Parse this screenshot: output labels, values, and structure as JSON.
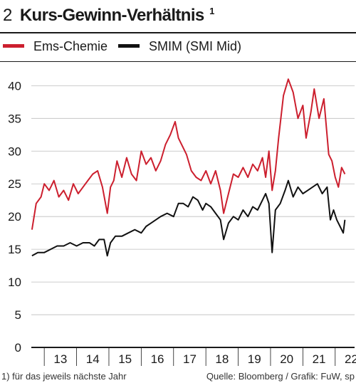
{
  "figure": {
    "number": "2",
    "title": "Kurs-Gewinn-Verhältnis",
    "title_sup": "1",
    "footnote": "1) für das jeweils nächste Jahr",
    "source": "Quelle: Bloomberg / Grafik: FuW, sp"
  },
  "chart_data": {
    "type": "line",
    "title": "Kurs-Gewinn-Verhältnis",
    "xlabel": "",
    "ylabel": "",
    "xlim": [
      2012.6,
      2022.6
    ],
    "ylim": [
      0,
      42
    ],
    "yticks": [
      0,
      5,
      10,
      15,
      20,
      25,
      30,
      35,
      40
    ],
    "xtick_labels": [
      "13",
      "14",
      "15",
      "16",
      "17",
      "18",
      "19",
      "20",
      "21",
      "22"
    ],
    "xtick_positions": [
      2013.5,
      2014.5,
      2015.5,
      2016.5,
      2017.5,
      2018.5,
      2019.5,
      2020.5,
      2021.5,
      2022.5
    ],
    "grid": "horizontal",
    "legend": "top-left",
    "series": [
      {
        "name": "Ems-Chemie",
        "color": "#cc1f2e",
        "x": [
          2012.62,
          2012.75,
          2012.9,
          2013.0,
          2013.15,
          2013.3,
          2013.45,
          2013.6,
          2013.75,
          2013.9,
          2014.05,
          2014.2,
          2014.35,
          2014.5,
          2014.65,
          2014.8,
          2014.95,
          2015.05,
          2015.15,
          2015.25,
          2015.4,
          2015.55,
          2015.7,
          2015.85,
          2016.0,
          2016.15,
          2016.3,
          2016.45,
          2016.6,
          2016.75,
          2016.9,
          2017.05,
          2017.15,
          2017.25,
          2017.4,
          2017.55,
          2017.7,
          2017.85,
          2018.0,
          2018.15,
          2018.3,
          2018.45,
          2018.55,
          2018.7,
          2018.85,
          2019.0,
          2019.15,
          2019.3,
          2019.45,
          2019.6,
          2019.75,
          2019.85,
          2019.95,
          2020.05,
          2020.15,
          2020.25,
          2020.4,
          2020.55,
          2020.7,
          2020.85,
          2021.0,
          2021.1,
          2021.25,
          2021.35,
          2021.5,
          2021.65,
          2021.8,
          2021.9,
          2022.0,
          2022.1,
          2022.2,
          2022.3
        ],
        "values": [
          18,
          22,
          23,
          25,
          24,
          25.5,
          23,
          24,
          22.5,
          25,
          23.5,
          24.5,
          25.5,
          26.5,
          27,
          24.5,
          20.5,
          24.5,
          25.5,
          28.5,
          26,
          29,
          26.5,
          25.5,
          30,
          28,
          29,
          27,
          28.5,
          31,
          32.5,
          34.5,
          32,
          31,
          29.5,
          27,
          26,
          25.5,
          27,
          25,
          27,
          24,
          20.5,
          23.5,
          26.5,
          26,
          27.5,
          26,
          28,
          27,
          29,
          26,
          30,
          24,
          27,
          32,
          38.5,
          41,
          39,
          35,
          37,
          32,
          36,
          39.5,
          35,
          38,
          29.5,
          28.5,
          26,
          24.5,
          27.5,
          26.5
        ]
      },
      {
        "name": "SMIM (SMI Mid)",
        "color": "#111111",
        "x": [
          2012.62,
          2012.8,
          2013.0,
          2013.2,
          2013.4,
          2013.6,
          2013.8,
          2014.0,
          2014.2,
          2014.4,
          2014.55,
          2014.7,
          2014.85,
          2014.95,
          2015.05,
          2015.2,
          2015.4,
          2015.6,
          2015.8,
          2016.0,
          2016.15,
          2016.3,
          2016.45,
          2016.6,
          2016.8,
          2017.0,
          2017.15,
          2017.3,
          2017.45,
          2017.6,
          2017.75,
          2017.9,
          2018.0,
          2018.15,
          2018.3,
          2018.45,
          2018.55,
          2018.7,
          2018.85,
          2019.0,
          2019.15,
          2019.3,
          2019.45,
          2019.6,
          2019.75,
          2019.85,
          2019.95,
          2020.05,
          2020.15,
          2020.3,
          2020.45,
          2020.55,
          2020.7,
          2020.85,
          2021.0,
          2021.15,
          2021.3,
          2021.45,
          2021.6,
          2021.75,
          2021.85,
          2021.95,
          2022.05,
          2022.15,
          2022.25,
          2022.3
        ],
        "values": [
          14,
          14.5,
          14.5,
          15,
          15.5,
          15.5,
          16,
          15.5,
          16,
          16,
          15.5,
          16.5,
          16.5,
          14,
          16,
          17,
          17,
          17.5,
          18,
          17.5,
          18.5,
          19,
          19.5,
          20,
          20.5,
          20,
          22,
          22,
          21.5,
          23,
          22.5,
          21,
          22,
          21.5,
          20.5,
          19.5,
          16.5,
          19,
          20,
          19.5,
          21,
          20,
          21.5,
          21,
          22.5,
          23.5,
          22,
          14.5,
          21,
          22,
          24,
          25.5,
          23,
          24.5,
          23.5,
          24,
          24.5,
          25,
          23.5,
          24.5,
          19.5,
          21,
          19.5,
          18.5,
          17.5,
          19.5
        ]
      }
    ]
  }
}
